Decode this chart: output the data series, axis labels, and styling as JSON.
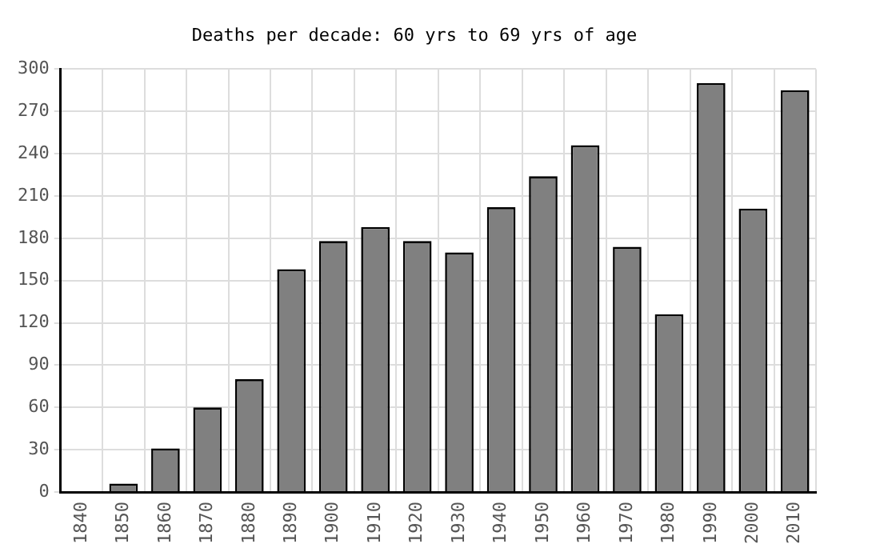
{
  "chart_data": {
    "type": "bar",
    "title": "Deaths per decade: 60 yrs to 69 yrs of age",
    "categories": [
      "1840",
      "1850",
      "1860",
      "1870",
      "1880",
      "1890",
      "1900",
      "1910",
      "1920",
      "1930",
      "1940",
      "1950",
      "1960",
      "1970",
      "1980",
      "1990",
      "2000",
      "2010"
    ],
    "values": [
      0,
      6,
      31,
      60,
      80,
      158,
      178,
      188,
      178,
      170,
      202,
      224,
      246,
      174,
      126,
      290,
      201,
      285
    ],
    "color": "#808080",
    "ylim": [
      0,
      300
    ],
    "yticks": [
      0,
      30,
      60,
      90,
      120,
      150,
      180,
      210,
      240,
      270,
      300
    ],
    "grid": true,
    "legend": false
  }
}
